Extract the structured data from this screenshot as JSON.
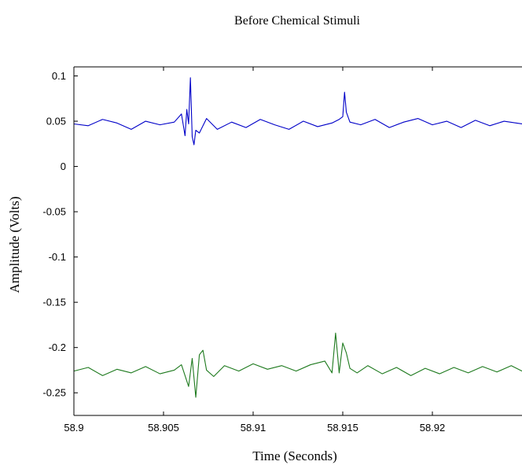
{
  "chart_data": {
    "type": "line",
    "title": "Before Chemical Stimuli",
    "xlabel": "Time (Seconds)",
    "ylabel": "Amplitude (Volts)",
    "xlim": [
      58.9,
      58.925
    ],
    "ylim": [
      -0.275,
      0.11
    ],
    "grid": false,
    "legend": "none",
    "x_ticks": [
      {
        "value": 58.9,
        "label": "58.9"
      },
      {
        "value": 58.905,
        "label": "58.905"
      },
      {
        "value": 58.91,
        "label": "58.91"
      },
      {
        "value": 58.915,
        "label": "58.915"
      },
      {
        "value": 58.92,
        "label": "58.92"
      }
    ],
    "y_ticks": [
      {
        "value": 0.1,
        "label": "0.1"
      },
      {
        "value": 0.05,
        "label": "0.05"
      },
      {
        "value": 0,
        "label": "0"
      },
      {
        "value": -0.05,
        "label": "-0.05"
      },
      {
        "value": -0.1,
        "label": "-0.1"
      },
      {
        "value": -0.15,
        "label": "-0.15"
      },
      {
        "value": -0.2,
        "label": "-0.2"
      },
      {
        "value": -0.25,
        "label": "-0.25"
      }
    ],
    "series": [
      {
        "color": "#0000c8",
        "x": [
          58.9,
          58.9008,
          58.9016,
          58.9024,
          58.9032,
          58.904,
          58.9048,
          58.9056,
          58.906,
          58.9062,
          58.9063,
          58.9064,
          58.9065,
          58.9066,
          58.9067,
          58.9068,
          58.907,
          58.9074,
          58.908,
          58.9088,
          58.9096,
          58.9104,
          58.9112,
          58.912,
          58.9128,
          58.9136,
          58.9144,
          58.9148,
          58.915,
          58.9151,
          58.9152,
          58.9154,
          58.916,
          58.9168,
          58.9176,
          58.9184,
          58.9192,
          58.92,
          58.9208,
          58.9216,
          58.9224,
          58.9232,
          58.924,
          58.925
        ],
        "values": [
          0.047,
          0.045,
          0.052,
          0.048,
          0.041,
          0.05,
          0.046,
          0.049,
          0.058,
          0.034,
          0.063,
          0.047,
          0.098,
          0.033,
          0.024,
          0.04,
          0.037,
          0.053,
          0.041,
          0.049,
          0.043,
          0.052,
          0.046,
          0.041,
          0.05,
          0.044,
          0.048,
          0.052,
          0.055,
          0.082,
          0.06,
          0.049,
          0.046,
          0.052,
          0.043,
          0.049,
          0.053,
          0.046,
          0.05,
          0.043,
          0.051,
          0.045,
          0.05,
          0.047
        ]
      },
      {
        "color": "#1e7a1e",
        "x": [
          58.9,
          58.9008,
          58.9016,
          58.9024,
          58.9032,
          58.904,
          58.9048,
          58.9056,
          58.906,
          58.9064,
          58.9066,
          58.9068,
          58.907,
          58.9072,
          58.9074,
          58.9078,
          58.9084,
          58.9092,
          58.91,
          58.9108,
          58.9116,
          58.9124,
          58.9132,
          58.914,
          58.9144,
          58.9146,
          58.9148,
          58.915,
          58.9152,
          58.9154,
          58.9158,
          58.9164,
          58.9172,
          58.918,
          58.9188,
          58.9196,
          58.9204,
          58.9212,
          58.922,
          58.9228,
          58.9236,
          58.9244,
          58.925
        ],
        "values": [
          -0.226,
          -0.222,
          -0.231,
          -0.224,
          -0.228,
          -0.221,
          -0.229,
          -0.225,
          -0.219,
          -0.243,
          -0.212,
          -0.255,
          -0.208,
          -0.203,
          -0.225,
          -0.232,
          -0.22,
          -0.226,
          -0.218,
          -0.224,
          -0.22,
          -0.226,
          -0.219,
          -0.215,
          -0.228,
          -0.184,
          -0.228,
          -0.195,
          -0.206,
          -0.223,
          -0.228,
          -0.22,
          -0.229,
          -0.222,
          -0.231,
          -0.223,
          -0.229,
          -0.222,
          -0.228,
          -0.221,
          -0.227,
          -0.22,
          -0.226
        ]
      }
    ]
  }
}
